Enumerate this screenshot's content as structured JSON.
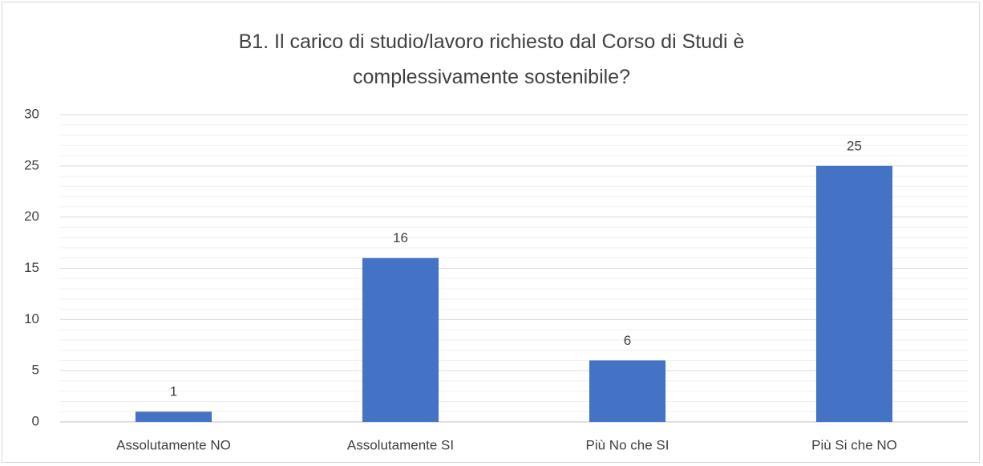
{
  "chart_data": {
    "type": "bar",
    "title": "B1. Il carico di studio/lavoro richiesto dal Corso di Studi è complessivamente sostenibile?",
    "categories": [
      "Assolutamente NO",
      "Assolutamente SI",
      "Più No che SI",
      "Più Si che NO"
    ],
    "values": [
      1,
      16,
      6,
      25
    ],
    "color": "#4472c4",
    "ylim": [
      0,
      30
    ],
    "yticks": [
      0,
      5,
      10,
      15,
      20,
      25,
      30
    ],
    "grid": true,
    "minor_grid": true
  }
}
